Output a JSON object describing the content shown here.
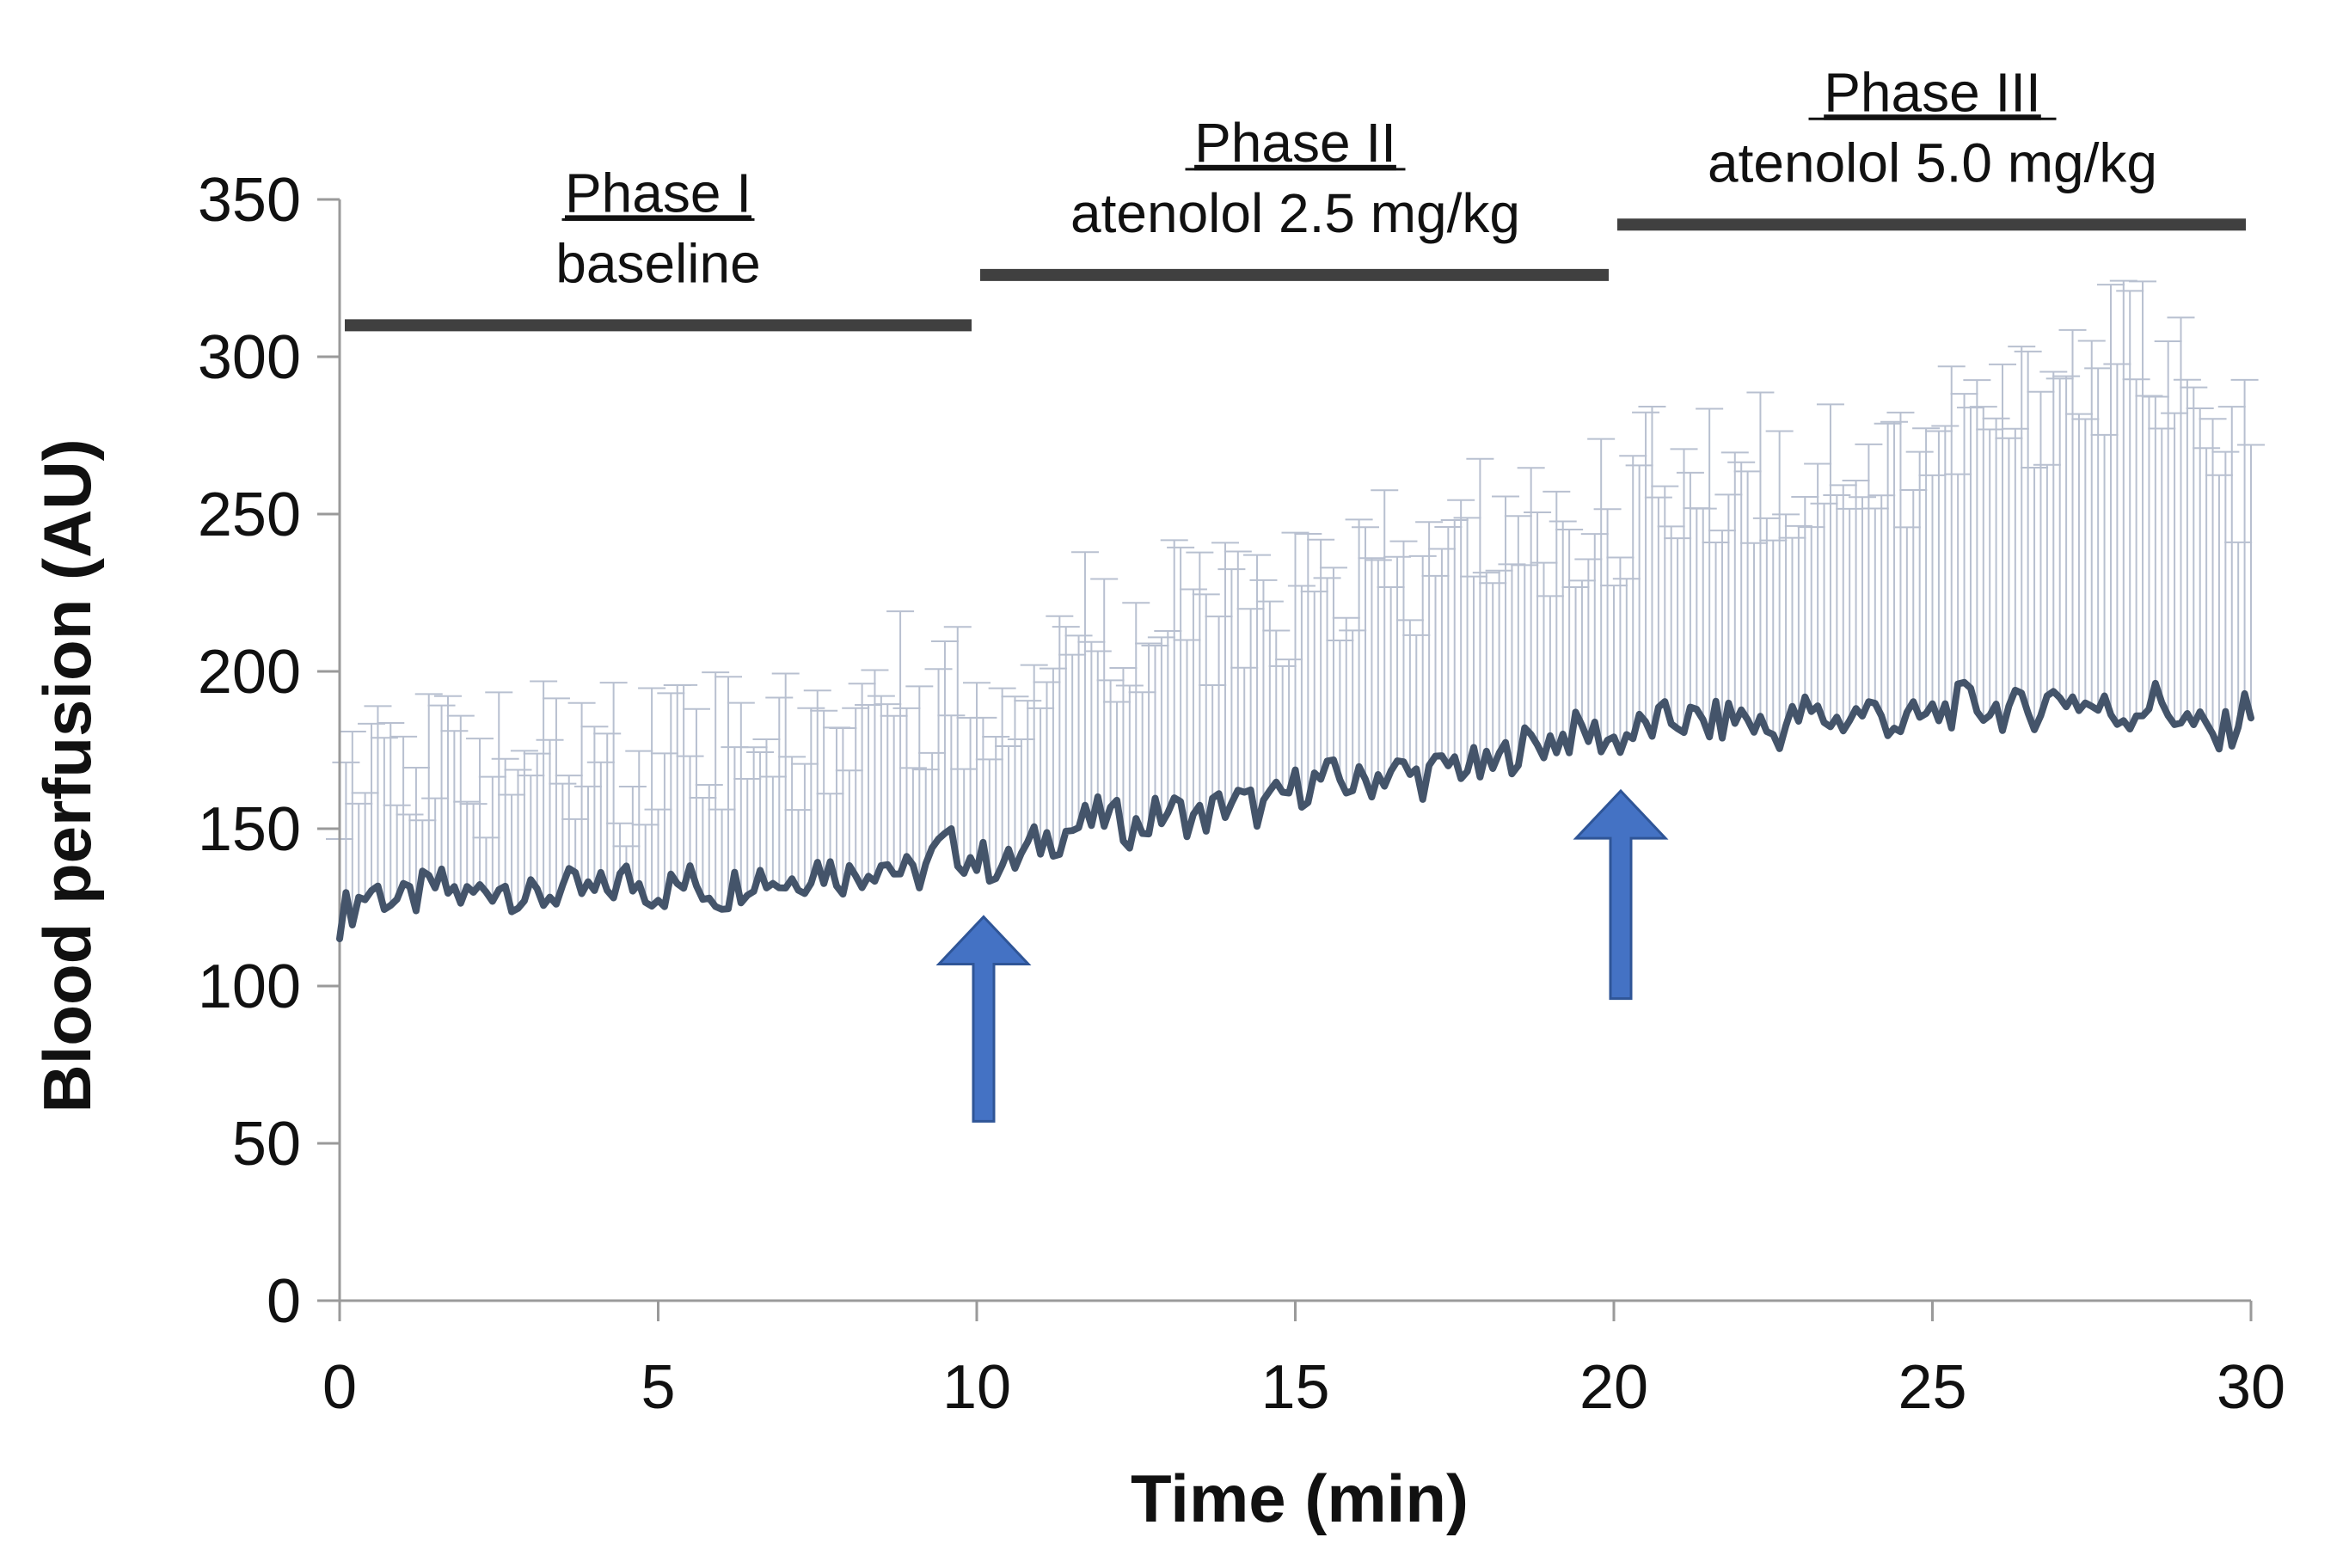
{
  "chart_data": {
    "type": "line",
    "xlabel": "Time (min)",
    "ylabel": "Blood perfusion (AU)",
    "xlim": [
      0,
      30
    ],
    "ylim": [
      0,
      350
    ],
    "xticks": [
      0,
      5,
      10,
      15,
      20,
      25,
      30
    ],
    "yticks": [
      0,
      50,
      100,
      150,
      200,
      250,
      300,
      350
    ],
    "grid": false,
    "legend": "none",
    "colors": {
      "line": "#44546a",
      "error_bars": "#b8c0d0",
      "phase_bar": "#404040",
      "arrow_fill": "#4472c4",
      "arrow_stroke": "#2f5597"
    },
    "phases": [
      {
        "name": "Phase I",
        "desc": "baseline",
        "start": 0,
        "end": 10,
        "level": 310
      },
      {
        "name": "Phase II",
        "desc": "atenolol 2.5 mg/kg",
        "start": 10,
        "end": 20,
        "level": 326
      },
      {
        "name": "Phase III",
        "desc": "atenolol 5.0 mg/kg",
        "start": 20,
        "end": 30,
        "level": 342
      }
    ],
    "arrows": [
      {
        "x": 10,
        "y_tip": 122,
        "y_tail": 57
      },
      {
        "x": 20,
        "y_tip": 162,
        "y_tail": 96
      }
    ],
    "series": [
      {
        "x": [
          0,
          0.5,
          1,
          1.5,
          2,
          2.5,
          3,
          3.5,
          4,
          4.5,
          5,
          5.5,
          6,
          6.5,
          7,
          7.5,
          8,
          8.5,
          9,
          9.5,
          10,
          10.5,
          11,
          11.5,
          12,
          12.5,
          13,
          13.5,
          14,
          14.5,
          15,
          15.5,
          16,
          16.5,
          17,
          17.5,
          18,
          18.5,
          19,
          19.5,
          20,
          20.5,
          21,
          21.5,
          22,
          22.5,
          23,
          23.5,
          24,
          24.5,
          25,
          25.5,
          26,
          26.5,
          27,
          27.5,
          28,
          28.5,
          29,
          29.5,
          30
        ],
        "y": [
          122,
          131,
          126,
          132,
          128,
          133,
          127,
          131,
          129,
          134,
          130,
          133,
          129,
          136,
          133,
          138,
          135,
          140,
          134,
          145,
          140,
          138,
          146,
          150,
          154,
          150,
          156,
          153,
          159,
          156,
          163,
          166,
          164,
          169,
          166,
          171,
          168,
          176,
          178,
          181,
          178,
          182,
          185,
          183,
          186,
          180,
          187,
          184,
          188,
          183,
          186,
          190,
          188,
          187,
          193,
          189,
          186,
          191,
          184,
          178,
          190
        ],
        "error_upper": [
          168,
          186,
          182,
          164,
          178,
          168,
          174,
          172,
          176,
          170,
          178,
          188,
          179,
          185,
          176,
          178,
          186,
          196,
          192,
          198,
          186,
          196,
          205,
          214,
          220,
          208,
          215,
          222,
          218,
          212,
          226,
          225,
          230,
          232,
          228,
          240,
          246,
          245,
          244,
          246,
          250,
          262,
          260,
          258,
          268,
          264,
          258,
          272,
          262,
          268,
          274,
          279,
          277,
          284,
          296,
          292,
          302,
          306,
          286,
          262,
          268
        ]
      }
    ]
  }
}
